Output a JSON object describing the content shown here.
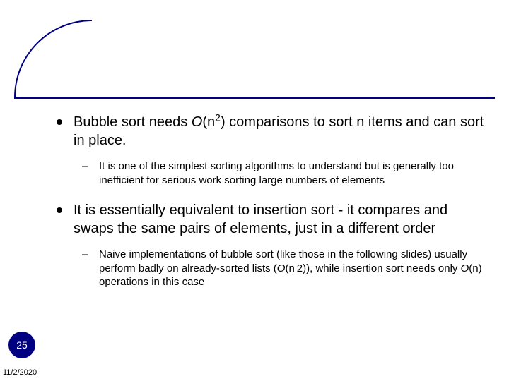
{
  "colors": {
    "accent": "#000080",
    "background": "#ffffff",
    "text": "#000000",
    "slide_number_bg": "#000080",
    "slide_number_fg": "#ffffff"
  },
  "typography": {
    "body_fontsize_pt": 20,
    "sub_fontsize_pt": 15,
    "slidenum_fontsize_pt": 14,
    "date_fontsize_pt": 11,
    "font_family": "Arial"
  },
  "bullets": [
    {
      "level": 1,
      "html": "Bubble sort needs <span class=\"italic\">O</span>(n<sup>2</sup>) comparisons to sort n items and can sort in place."
    },
    {
      "level": 2,
      "html": "It is one of the simplest sorting algorithms to understand but is generally too inefficient for serious work sorting large numbers of elements"
    },
    {
      "level": 1,
      "html": "It is essentially equivalent to insertion sort - it compares and swaps the same pairs of elements, just in a different order"
    },
    {
      "level": 2,
      "html": "Naive implementations of bubble sort (like those in the following slides) usually perform badly on already-sorted lists (<span class=\"italic\">O</span>(n&thinsp;2)), while insertion sort needs only <span class=\"italic\">O</span>(n) operations in this case"
    }
  ],
  "slide_number": "25",
  "date": "11/2/2020"
}
